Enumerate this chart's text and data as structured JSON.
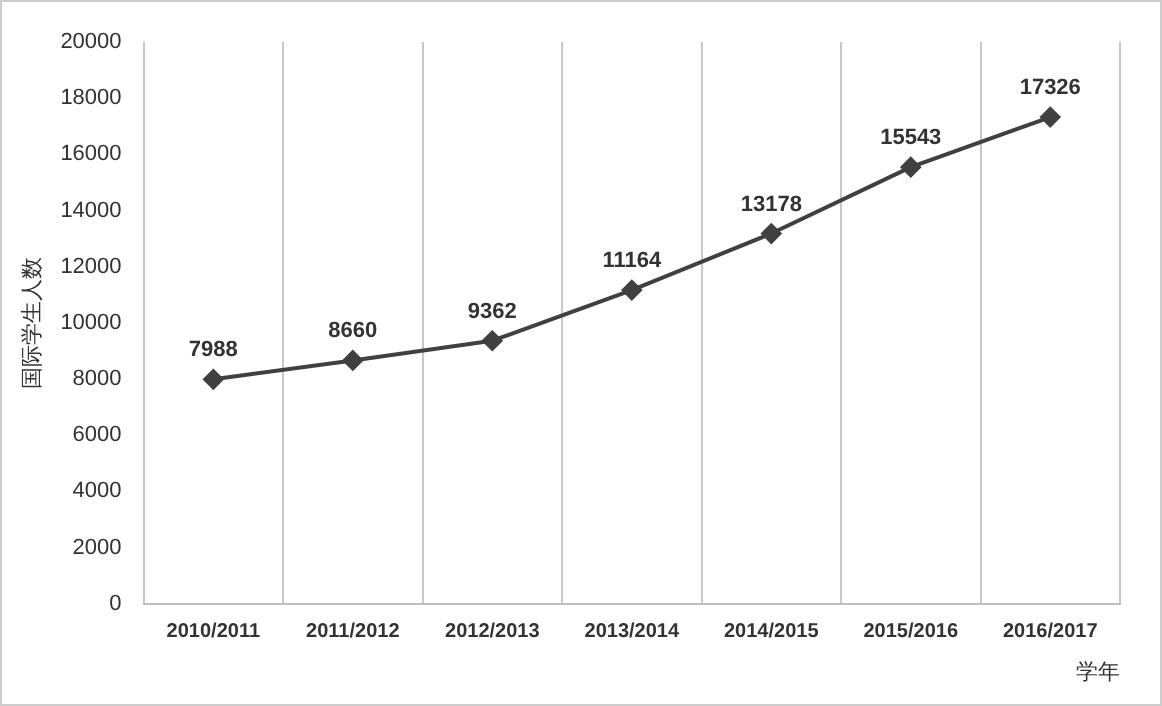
{
  "chart_data": {
    "type": "line",
    "ylabel": "国际学生人数",
    "xlabel": "学年",
    "categories": [
      "2010/2011",
      "2011/2012",
      "2012/2013",
      "2013/2014",
      "2014/2015",
      "2015/2016",
      "2016/2017"
    ],
    "series": [
      {
        "color": "#404040",
        "values": [
          7988,
          8660,
          9362,
          11164,
          13178,
          15543,
          17326
        ]
      }
    ],
    "ylim": [
      0,
      20000
    ],
    "yticks": [
      0,
      2000,
      4000,
      6000,
      8000,
      10000,
      12000,
      14000,
      16000,
      18000,
      20000
    ],
    "grid": "x",
    "legend": false,
    "marker": "diamond",
    "line_style": "solid",
    "data_labels": true
  }
}
